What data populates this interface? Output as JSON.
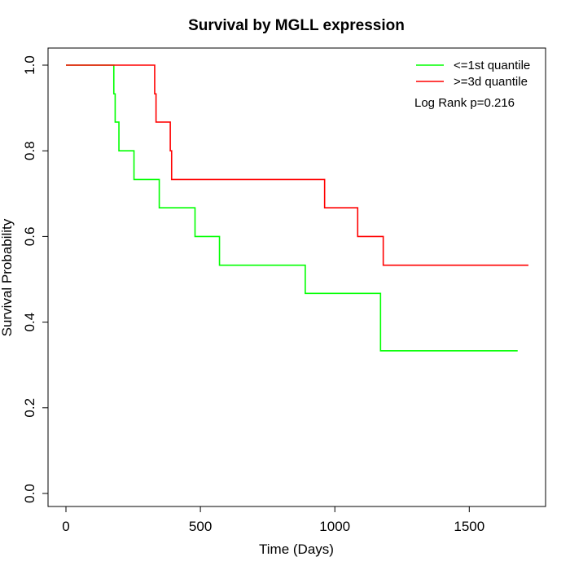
{
  "chart_data": {
    "type": "line",
    "step": true,
    "title": "Survival by MGLL expression",
    "xlabel": "Time (Days)",
    "ylabel": "Survival Probability",
    "xlim": [
      0,
      1750
    ],
    "ylim": [
      0,
      1.0
    ],
    "xticks": [
      0,
      500,
      1000,
      1500
    ],
    "yticks": [
      0.0,
      0.2,
      0.4,
      0.6,
      0.8,
      1.0
    ],
    "xtick_labels": [
      "0",
      "500",
      "1000",
      "1500"
    ],
    "ytick_labels": [
      "0.0",
      "0.2",
      "0.4",
      "0.6",
      "0.8",
      "1.0"
    ],
    "grid": false,
    "legend_position": "top-right",
    "annotation": "Log Rank p=0.216",
    "series": [
      {
        "name": "<=1st quantile",
        "color": "#00ff00",
        "x": [
          0,
          178,
          183,
          197,
          253,
          347,
          480,
          571,
          890,
          1170,
          1680
        ],
        "y": [
          1.0,
          0.933,
          0.867,
          0.8,
          0.733,
          0.667,
          0.6,
          0.533,
          0.467,
          0.333,
          0.333
        ]
      },
      {
        "name": ">=3d quantile",
        "color": "#ff0000",
        "x": [
          0,
          330,
          335,
          388,
          393,
          962,
          1085,
          1180,
          1720
        ],
        "y": [
          1.0,
          0.933,
          0.867,
          0.8,
          0.733,
          0.667,
          0.6,
          0.533,
          0.533
        ]
      }
    ]
  }
}
